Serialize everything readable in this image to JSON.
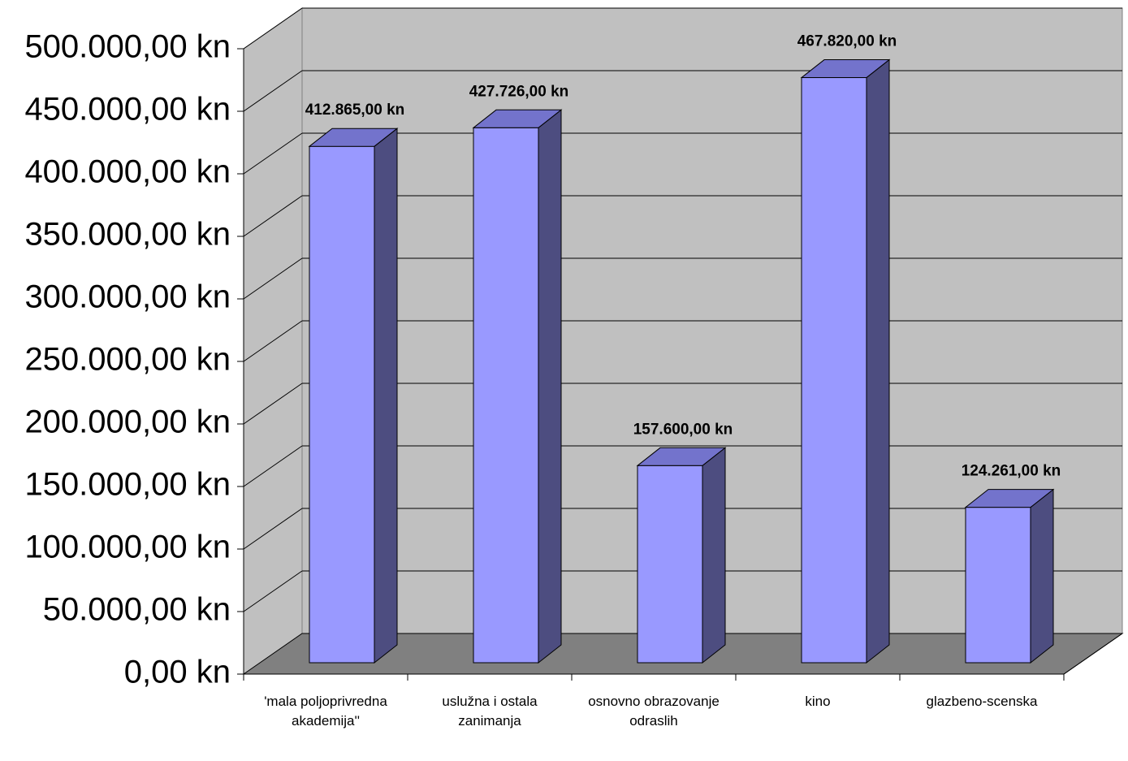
{
  "chart_data": {
    "type": "bar3d",
    "categories": [
      "'mala poljoprivredna akademija''",
      "uslužna i ostala zanimanja",
      "osnovno obrazovanje odraslih",
      "kino",
      "glazbeno-scenska"
    ],
    "values": [
      412865,
      427726,
      157600,
      467820,
      124261
    ],
    "value_labels": [
      "412.865,00 kn",
      "427.726,00 kn",
      "157.600,00 kn",
      "467.820,00 kn",
      "124.261,00 kn"
    ],
    "color": "#9999ff",
    "ylim": [
      0,
      500000
    ],
    "yticks": [
      {
        "value": 0,
        "label": "0,00 kn"
      },
      {
        "value": 50000,
        "label": "50.000,00 kn"
      },
      {
        "value": 100000,
        "label": "100.000,00 kn"
      },
      {
        "value": 150000,
        "label": "150.000,00 kn"
      },
      {
        "value": 200000,
        "label": "200.000,00 kn"
      },
      {
        "value": 250000,
        "label": "250.000,00 kn"
      },
      {
        "value": 300000,
        "label": "300.000,00 kn"
      },
      {
        "value": 350000,
        "label": "350.000,00 kn"
      },
      {
        "value": 400000,
        "label": "400.000,00 kn"
      },
      {
        "value": 450000,
        "label": "450.000,00 kn"
      },
      {
        "value": 500000,
        "label": "500.000,00 kn"
      }
    ],
    "grid": true
  }
}
